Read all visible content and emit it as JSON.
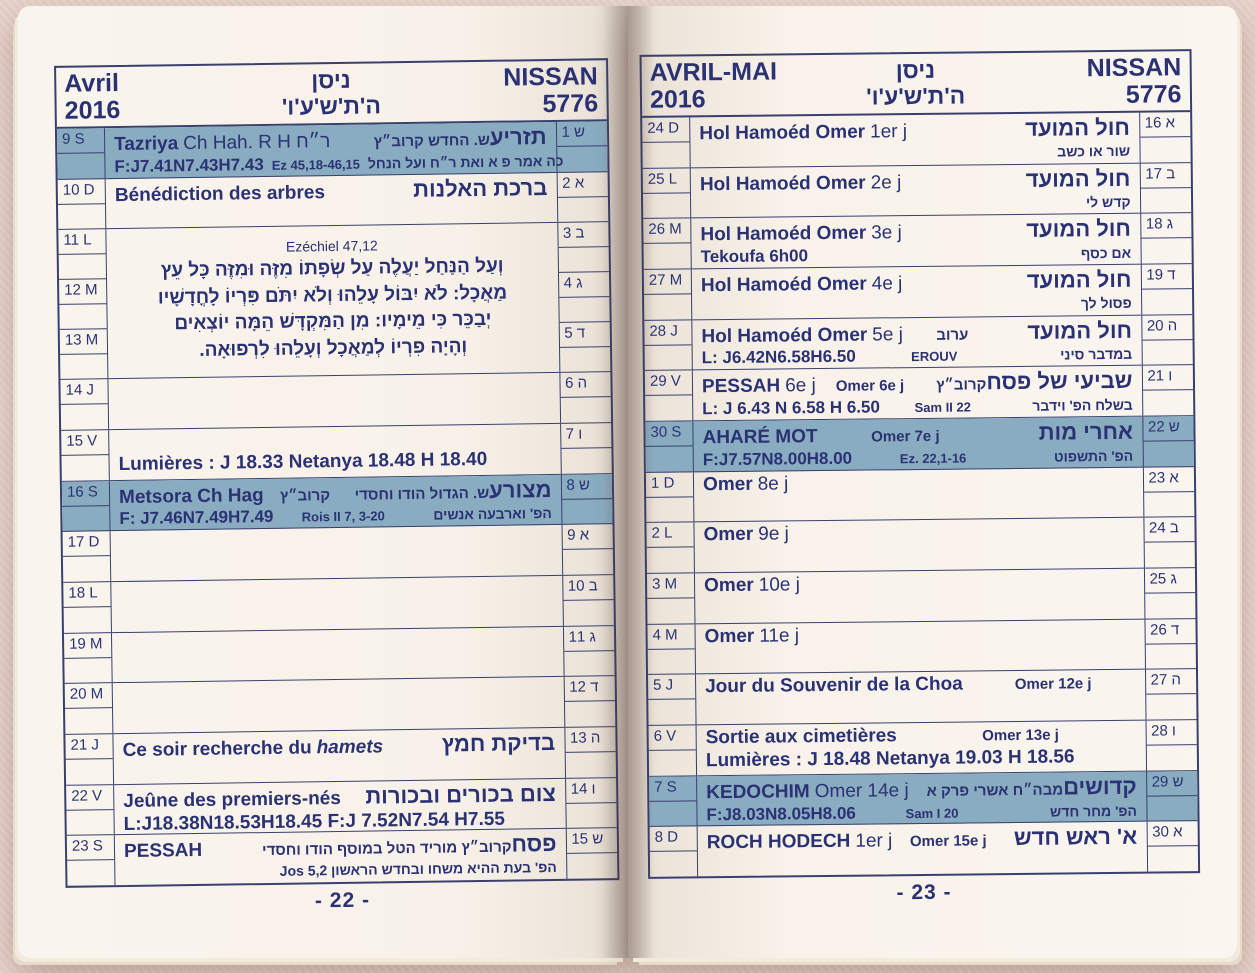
{
  "colors": {
    "ink": "#2a3274",
    "line": "#39406e",
    "highlight": "#8aacc0",
    "page": "#f7f1e8",
    "fabric": "#e9d5cc"
  },
  "book": {
    "left_page": {
      "header": {
        "month": "Avril",
        "year": "2016",
        "heb_month": "ניסן",
        "heb_year_letters": "ה'ת'ש'ע'ו'",
        "heb_month_latin": "NISSAN",
        "heb_year": "5776"
      },
      "footer": "- 22 -",
      "rows": [
        {
          "day": "9 S",
          "hdate": "1 ש",
          "hl": true,
          "fr_b": "Tazriya",
          "fr_r": "Ch Hah. R H  ר״ח",
          "he_b": "תזריע",
          "he_r": "ש. החדש קרוב״ץ",
          "sub_left": "F:J7.41N7.43H7.43",
          "sub_mid": "Ez 45,18-46,15",
          "sub_right": "כה אמר פ א ואת ר״ח ועל הנחל"
        },
        {
          "day": "10 D",
          "hdate": "2 א",
          "fr_b": "Bénédiction des arbres",
          "he_b": "ברכת האלנות"
        },
        {
          "type": "verse",
          "days": [
            "11 L",
            "12 M",
            "13 M"
          ],
          "hdates": [
            "3 ב",
            "4 ג",
            "5 ד"
          ],
          "title": "Ezéchiel 47,12",
          "lines": [
            "וְעַל הַנַּחַל יַעֲלֶה עַל שְׂפָתוֹ מִזֶּה וּמִזֶּה כָּל עֵץ",
            "מַאֲכָל: לֹא יִבּוֹל עָלֵהוּ וְלֹא יִתֹּם פִּרְיוֹ לָחֳדָשָׁיו",
            "יְבַכֵּר כִּי מֵימָיו: מִן הַמִּקְדָּשׁ הֵמָּה יוֹצְאִים",
            "וְהָיָה פִרְיוֹ לְמַאֲכָל וְעָלֵהוּ לִרְפוּאָה."
          ]
        },
        {
          "day": "14 J",
          "hdate": "6 ה"
        },
        {
          "day": "15 V",
          "hdate": "7 ו",
          "sub_left": "Lumières : J 18.33 Netanya 18.48 H 18.40",
          "big_sub": true
        },
        {
          "day": "16 S",
          "hdate": "8 ש",
          "hl": true,
          "fr_b": "Metsora Ch Hag",
          "mid1": "קרוב״ץ",
          "he_b": "מצורע",
          "he_r": "ש. הגדול הודו וחסדי",
          "sub_left": "F: J7.46N7.49H7.49",
          "sub_mid": "Rois II 7, 3-20",
          "sub_right": "הפ' וארבעה אנשים"
        },
        {
          "day": "17 D",
          "hdate": "9 א"
        },
        {
          "day": "18 L",
          "hdate": "10 ב"
        },
        {
          "day": "19 M",
          "hdate": "11 ג"
        },
        {
          "day": "20 M",
          "hdate": "12 ד"
        },
        {
          "day": "21 J",
          "hdate": "13 ה",
          "fr_b": "Ce soir recherche du",
          "fr_i": "hamets",
          "he_b": "בדיקת חמץ"
        },
        {
          "day": "22 V",
          "hdate": "14 ו",
          "fr_b": "Jeûne des premiers-nés",
          "he_b": "צום בכורים ובכורות",
          "sub_left": "L:J18.38N18.53H18.45 F:J 7.52N7.54 H7.55",
          "big_sub": true
        },
        {
          "day": "23 S",
          "hdate": "15 ש",
          "fr_b": "PESSAH",
          "he_b": "פסח",
          "he_r": "קרוב״ץ מוריד הטל במוסף הודו וחסדי",
          "sub_right": "הפ' בעת ההיא משחו ובחדש הראשון Jos 5,2"
        }
      ]
    },
    "right_page": {
      "header": {
        "month": "AVRIL-MAI",
        "year": "2016",
        "heb_month": "ניסן",
        "heb_year_letters": "ה'ת'ש'ע'ו'",
        "heb_month_latin": "NISSAN",
        "heb_year": "5776"
      },
      "footer": "- 23 -",
      "rows": [
        {
          "day": "24 D",
          "hdate": "16 א",
          "fr_b": "Hol Hamoéd Omer",
          "fr_r": "1er j",
          "he_b": "חול המועד",
          "sub_right": "שור או כשב"
        },
        {
          "day": "25 L",
          "hdate": "17 ב",
          "fr_b": "Hol Hamoéd Omer",
          "fr_r": "2e j",
          "he_b": "חול המועד",
          "sub_right": "קדש לי"
        },
        {
          "day": "26 M",
          "hdate": "18 ג",
          "fr_b": "Hol Hamoéd Omer",
          "fr_r": "3e j",
          "he_b": "חול המועד",
          "sub_left": "Tekoufa  6h00",
          "sub_right": "אם כסף"
        },
        {
          "day": "27 M",
          "hdate": "19 ד",
          "fr_b": "Hol Hamoéd Omer",
          "fr_r": "4e j",
          "he_b": "חול המועד",
          "sub_right": "פסול לך"
        },
        {
          "day": "28 J",
          "hdate": "20 ה",
          "fr_b": "Hol Hamoéd  Omer",
          "fr_r": "5e j",
          "mid1": "ערוב",
          "he_b": "חול המועד",
          "sub_left": "L: J6.42N6.58H6.50",
          "sub_mid": "EROUV",
          "sub_right": "במדבר סיני"
        },
        {
          "day": "29 V",
          "hdate": "21 ו",
          "fr_b": "PESSAH",
          "fr_r": "6e j",
          "mid1": "Omer 6e j",
          "he_b": "שביעי של פסח",
          "he_r": "קרוב״ץ",
          "sub_left": "L: J 6.43 N 6.58 H 6.50",
          "sub_mid": "Sam II 22",
          "sub_right": "בשלח  הפ' וידבר"
        },
        {
          "day": "30 S",
          "hdate": "22 ש",
          "hl": true,
          "fr_b": "AHARÉ MOT",
          "mid1": "Omer  7e j",
          "he_b": "אחרי מות",
          "sub_left": "F:J7.57N8.00H8.00",
          "sub_mid": "Ez. 22,1-16",
          "sub_right": "הפ' התשפוט"
        },
        {
          "day": "1 D",
          "hdate": "23 א",
          "fr_b": "Omer",
          "fr_r": "8e j"
        },
        {
          "day": "2 L",
          "hdate": "24 ב",
          "fr_b": "Omer",
          "fr_r": "9e j"
        },
        {
          "day": "3 M",
          "hdate": "25 ג",
          "fr_b": "Omer",
          "fr_r": "10e j"
        },
        {
          "day": "4 M",
          "hdate": "26 ד",
          "fr_b": "Omer",
          "fr_r": "11e j"
        },
        {
          "day": "5 J",
          "hdate": "27 ה",
          "fr_b": "Jour du Souvenir de la Choa",
          "mid1": "Omer 12e j"
        },
        {
          "day": "6 V",
          "hdate": "28 ו",
          "fr_b": "Sortie aux cimetières",
          "mid1": "Omer 13e j",
          "sub_left": "Lumières : J 18.48 Netanya 19.03 H 18.56",
          "big_sub": true
        },
        {
          "day": "7 S",
          "hdate": "29 ש",
          "hl": true,
          "fr_b": "KEDOCHIM",
          "fr_r": "Omer 14e j",
          "he_b": "קדושים",
          "he_r": "מבה״ח אשרי פרק א",
          "sub_left": "F:J8.03N8.05H8.06",
          "sub_mid": "Sam I 20",
          "sub_right": "הפ' מחר חדש"
        },
        {
          "day": "8 D",
          "hdate": "30 א",
          "fr_b": "ROCH HODECH",
          "fr_r": "1er j",
          "mid1": "Omer 15e j",
          "he_b": "א' ראש חדש"
        }
      ]
    }
  }
}
